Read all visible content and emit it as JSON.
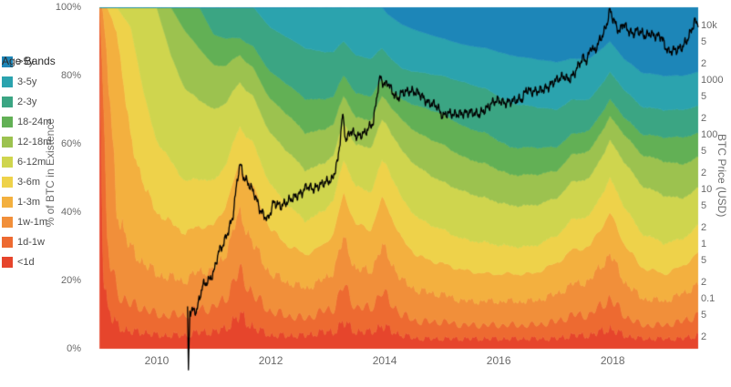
{
  "chart_data": {
    "type": "area",
    "subtype": "stacked-100pct-area-with-log-price-line",
    "title": "",
    "legend_title": "Age Bands",
    "x_axis": {
      "range": [
        2008.72,
        2019.5
      ],
      "ticks": [
        {
          "value": 2010,
          "label": "2010"
        },
        {
          "value": 2012,
          "label": "2012"
        },
        {
          "value": 2014,
          "label": "2014"
        },
        {
          "value": 2016,
          "label": "2016"
        },
        {
          "value": 2018,
          "label": "2018"
        }
      ]
    },
    "y_left": {
      "label": "% of BTC in Existence",
      "range": [
        0,
        100
      ],
      "ticks": [
        {
          "value": 0,
          "label": "0%"
        },
        {
          "value": 20,
          "label": "20%"
        },
        {
          "value": 40,
          "label": "40%"
        },
        {
          "value": 60,
          "label": "60%"
        },
        {
          "value": 80,
          "label": "80%"
        },
        {
          "value": 100,
          "label": "100%"
        }
      ]
    },
    "y_right": {
      "label": "BTC Price (USD)",
      "scale": "log",
      "log_range": [
        -1.917,
        4.333
      ],
      "ticks": [
        {
          "value": 10000,
          "label": "10k"
        },
        {
          "value": 5000,
          "label": "5"
        },
        {
          "value": 2000,
          "label": "2"
        },
        {
          "value": 1000,
          "label": "1000"
        },
        {
          "value": 500,
          "label": "5"
        },
        {
          "value": 200,
          "label": "2"
        },
        {
          "value": 100,
          "label": "100"
        },
        {
          "value": 50,
          "label": "5"
        },
        {
          "value": 20,
          "label": "2"
        },
        {
          "value": 10,
          "label": "10"
        },
        {
          "value": 5,
          "label": "5"
        },
        {
          "value": 2,
          "label": "2"
        },
        {
          "value": 1,
          "label": "1"
        },
        {
          "value": 0.5,
          "label": "5"
        },
        {
          "value": 0.2,
          "label": "2"
        },
        {
          "value": 0.1,
          "label": "0.1"
        },
        {
          "value": 0.05,
          "label": "5"
        },
        {
          "value": 0.02,
          "label": "2"
        }
      ]
    },
    "bands": [
      {
        "id": "lt-1d",
        "label": "<1d",
        "color": "#e6452c"
      },
      {
        "id": "1d-1w",
        "label": "1d-1w",
        "color": "#ed6a31"
      },
      {
        "id": "1w-1m",
        "label": "1w-1m",
        "color": "#f18f3a"
      },
      {
        "id": "1-3m",
        "label": "1-3m",
        "color": "#f3b03f"
      },
      {
        "id": "3-6m",
        "label": "3-6m",
        "color": "#eed24a"
      },
      {
        "id": "6-12m",
        "label": "6-12m",
        "color": "#cfd54e"
      },
      {
        "id": "12-18m",
        "label": "12-18m",
        "color": "#9cc24f"
      },
      {
        "id": "18-24m",
        "label": "18-24m",
        "color": "#62b055"
      },
      {
        "id": "2-3y",
        "label": "2-3y",
        "color": "#3ba583"
      },
      {
        "id": "3-5y",
        "label": "3-5y",
        "color": "#2ba3ae"
      },
      {
        "id": "gt-5y",
        "label": ">5y",
        "color": "#1d86b8"
      }
    ],
    "samples": {
      "t": [
        2009.0,
        2009.05,
        2009.13,
        2009.3,
        2009.55,
        2009.8,
        2010.0,
        2010.25,
        2010.5,
        2010.75,
        2011.0,
        2011.2,
        2011.45,
        2011.7,
        2012.0,
        2012.3,
        2012.6,
        2012.9,
        2013.1,
        2013.28,
        2013.5,
        2013.75,
        2013.95,
        2014.05,
        2014.3,
        2014.6,
        2015.0,
        2015.4,
        2015.8,
        2016.2,
        2016.6,
        2017.0,
        2017.3,
        2017.6,
        2017.95,
        2018.2,
        2018.5,
        2018.9,
        2019.2,
        2019.5
      ],
      "values": [
        [
          100,
          0,
          0,
          0,
          0,
          0,
          0,
          0,
          0,
          0,
          0
        ],
        [
          30,
          55,
          15,
          0,
          0,
          0,
          0,
          0,
          0,
          0,
          0
        ],
        [
          12,
          18,
          55,
          15,
          0,
          0,
          0,
          0,
          0,
          0,
          0
        ],
        [
          7,
          10,
          24,
          52,
          7,
          0,
          0,
          0,
          0,
          0,
          0
        ],
        [
          5,
          8,
          16,
          32,
          33,
          6,
          0,
          0,
          0,
          0,
          0
        ],
        [
          5,
          7,
          13,
          22,
          26,
          27,
          0,
          0,
          0,
          0,
          0
        ],
        [
          4,
          6,
          12,
          18,
          21,
          39,
          0,
          0,
          0,
          0,
          0
        ],
        [
          4,
          6,
          11,
          16,
          18,
          31,
          14,
          0,
          0,
          0,
          0
        ],
        [
          4,
          6,
          10,
          14,
          15,
          27,
          17,
          7,
          0,
          0,
          0
        ],
        [
          5,
          7,
          11,
          13,
          14,
          23,
          15,
          12,
          0,
          0,
          0
        ],
        [
          5,
          7,
          11,
          13,
          13,
          21,
          13,
          9,
          8,
          0,
          0
        ],
        [
          6,
          9,
          13,
          14,
          12,
          18,
          11,
          8,
          9,
          0,
          0
        ],
        [
          10,
          13,
          17,
          14,
          11,
          13,
          8,
          5,
          9,
          0,
          0
        ],
        [
          6,
          9,
          14,
          16,
          12,
          13,
          8,
          6,
          11,
          0,
          0
        ],
        [
          4,
          7,
          11,
          13,
          13,
          15,
          10,
          8,
          13,
          6,
          0
        ],
        [
          4,
          6,
          10,
          11,
          12,
          16,
          11,
          9,
          14,
          9,
          0
        ],
        [
          4,
          5,
          9,
          10,
          10,
          15,
          11,
          10,
          15,
          12,
          0
        ],
        [
          5,
          6,
          9,
          10,
          10,
          14,
          10,
          9,
          14,
          13,
          0
        ],
        [
          5,
          7,
          11,
          11,
          10,
          13,
          9,
          8,
          13,
          13,
          0
        ],
        [
          8,
          11,
          14,
          13,
          10,
          11,
          8,
          6,
          10,
          10,
          0
        ],
        [
          5,
          7,
          11,
          13,
          11,
          12,
          8,
          7,
          11,
          14,
          0
        ],
        [
          5,
          7,
          11,
          12,
          11,
          13,
          8,
          7,
          11,
          15,
          0
        ],
        [
          7,
          10,
          13,
          14,
          11,
          12,
          7,
          5,
          9,
          12,
          0
        ],
        [
          6,
          9,
          13,
          14,
          12,
          12,
          7,
          5,
          9,
          12,
          2
        ],
        [
          4,
          6,
          10,
          12,
          12,
          14,
          9,
          6,
          9,
          13,
          5
        ],
        [
          3,
          5,
          9,
          10,
          11,
          15,
          10,
          8,
          10,
          12,
          7
        ],
        [
          3,
          5,
          8,
          9,
          10,
          14,
          11,
          9,
          11,
          11,
          9
        ],
        [
          3,
          4,
          7,
          9,
          9,
          14,
          10,
          9,
          13,
          11,
          11
        ],
        [
          3,
          4,
          7,
          8,
          9,
          13,
          10,
          9,
          13,
          12,
          12
        ],
        [
          3,
          4,
          7,
          8,
          8,
          12,
          9,
          8,
          13,
          14,
          14
        ],
        [
          3,
          4,
          7,
          8,
          8,
          12,
          9,
          8,
          12,
          14,
          15
        ],
        [
          3,
          5,
          8,
          9,
          8,
          11,
          8,
          7,
          11,
          14,
          16
        ],
        [
          4,
          6,
          9,
          10,
          9,
          11,
          8,
          6,
          10,
          12,
          15
        ],
        [
          4,
          6,
          10,
          10,
          9,
          11,
          8,
          6,
          9,
          12,
          15
        ],
        [
          6,
          9,
          13,
          12,
          10,
          11,
          7,
          5,
          8,
          9,
          10
        ],
        [
          4,
          6,
          10,
          11,
          11,
          13,
          8,
          5,
          8,
          9,
          15
        ],
        [
          3,
          4,
          8,
          9,
          10,
          14,
          9,
          6,
          8,
          10,
          19
        ],
        [
          3,
          4,
          7,
          8,
          9,
          14,
          10,
          7,
          8,
          10,
          20
        ],
        [
          3,
          5,
          8,
          8,
          8,
          12,
          10,
          8,
          8,
          10,
          20
        ],
        [
          4,
          6,
          9,
          9,
          8,
          11,
          9,
          7,
          8,
          10,
          19
        ]
      ]
    },
    "price": {
      "label": "BTC Price (USD)",
      "color": "#000000",
      "points": [
        [
          2010.54,
          0.06
        ],
        [
          2010.555,
          0.005
        ],
        [
          2010.58,
          0.06
        ],
        [
          2010.7,
          0.06
        ],
        [
          2010.8,
          0.17
        ],
        [
          2010.92,
          0.22
        ],
        [
          2011.0,
          0.3
        ],
        [
          2011.08,
          0.7
        ],
        [
          2011.17,
          1.0
        ],
        [
          2011.25,
          1.7
        ],
        [
          2011.33,
          3.0
        ],
        [
          2011.42,
          17
        ],
        [
          2011.46,
          30
        ],
        [
          2011.52,
          17
        ],
        [
          2011.58,
          14
        ],
        [
          2011.7,
          9
        ],
        [
          2011.82,
          4.0
        ],
        [
          2011.95,
          2.8
        ],
        [
          2012.05,
          5.8
        ],
        [
          2012.18,
          4.9
        ],
        [
          2012.35,
          6.6
        ],
        [
          2012.55,
          8.8
        ],
        [
          2012.63,
          11.5
        ],
        [
          2012.75,
          10.2
        ],
        [
          2012.95,
          13.4
        ],
        [
          2013.08,
          15
        ],
        [
          2013.18,
          35
        ],
        [
          2013.26,
          230
        ],
        [
          2013.32,
          78
        ],
        [
          2013.4,
          118
        ],
        [
          2013.52,
          92
        ],
        [
          2013.65,
          108
        ],
        [
          2013.8,
          170
        ],
        [
          2013.88,
          700
        ],
        [
          2013.92,
          1130
        ],
        [
          2014.0,
          790
        ],
        [
          2014.05,
          930
        ],
        [
          2014.13,
          620
        ],
        [
          2014.22,
          450
        ],
        [
          2014.3,
          590
        ],
        [
          2014.45,
          630
        ],
        [
          2014.6,
          580
        ],
        [
          2014.75,
          390
        ],
        [
          2014.9,
          350
        ],
        [
          2015.02,
          215
        ],
        [
          2015.1,
          250
        ],
        [
          2015.22,
          235
        ],
        [
          2015.35,
          244
        ],
        [
          2015.5,
          260
        ],
        [
          2015.65,
          235
        ],
        [
          2015.8,
          310
        ],
        [
          2015.92,
          410
        ],
        [
          2016.0,
          430
        ],
        [
          2016.1,
          380
        ],
        [
          2016.25,
          418
        ],
        [
          2016.42,
          455
        ],
        [
          2016.48,
          680
        ],
        [
          2016.58,
          610
        ],
        [
          2016.7,
          640
        ],
        [
          2016.85,
          720
        ],
        [
          2016.98,
          960
        ],
        [
          2017.05,
          1050
        ],
        [
          2017.15,
          1180
        ],
        [
          2017.22,
          1000
        ],
        [
          2017.32,
          1280
        ],
        [
          2017.42,
          2050
        ],
        [
          2017.48,
          2550
        ],
        [
          2017.55,
          2250
        ],
        [
          2017.62,
          4200
        ],
        [
          2017.68,
          3300
        ],
        [
          2017.78,
          5600
        ],
        [
          2017.85,
          7500
        ],
        [
          2017.9,
          11000
        ],
        [
          2017.95,
          19300
        ],
        [
          2018.0,
          13800
        ],
        [
          2018.07,
          9500
        ],
        [
          2018.12,
          7600
        ],
        [
          2018.18,
          11100
        ],
        [
          2018.27,
          8200
        ],
        [
          2018.35,
          6900
        ],
        [
          2018.42,
          8100
        ],
        [
          2018.5,
          7400
        ],
        [
          2018.58,
          6300
        ],
        [
          2018.65,
          7300
        ],
        [
          2018.72,
          6500
        ],
        [
          2018.85,
          6400
        ],
        [
          2018.92,
          4100
        ],
        [
          2018.98,
          3300
        ],
        [
          2019.05,
          3500
        ],
        [
          2019.13,
          3600
        ],
        [
          2019.22,
          4000
        ],
        [
          2019.3,
          5300
        ],
        [
          2019.38,
          8000
        ],
        [
          2019.44,
          12300
        ],
        [
          2019.47,
          10700
        ],
        [
          2019.5,
          11800
        ]
      ]
    },
    "texture": {
      "amplitudes": [
        0.35,
        0.3,
        0.22,
        0.15,
        0.08
      ],
      "price_noise": 1
    }
  }
}
